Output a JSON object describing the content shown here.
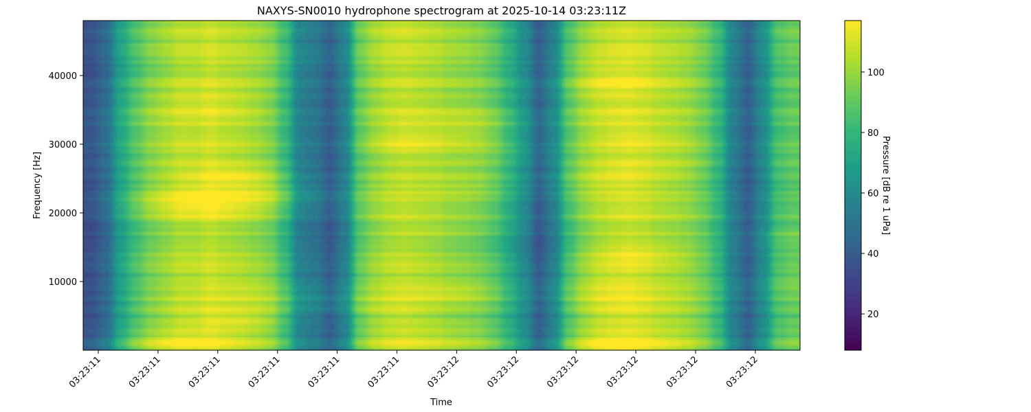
{
  "chart_data": {
    "type": "heatmap",
    "title": "NAXYS-SN0010 hydrophone spectrogram at 2025-10-14 03:23:11Z",
    "xlabel": "Time",
    "ylabel": "Frequency [Hz]",
    "ylim": [
      0,
      48000
    ],
    "x_tick_labels": [
      "03:23:11",
      "03:23:11",
      "03:23:11",
      "03:23:11",
      "03:23:11",
      "03:23:11",
      "03:23:12",
      "03:23:12",
      "03:23:12",
      "03:23:12",
      "03:23:12",
      "03:23:12"
    ],
    "y_ticks": [
      10000,
      20000,
      30000,
      40000
    ],
    "colormap": "viridis",
    "colorbar": {
      "label": "Pressure [dB re 1 uPa]",
      "range": [
        8,
        117
      ],
      "ticks": [
        20,
        40,
        60,
        80,
        100
      ]
    },
    "mean_level_db_by_time_bin": [
      35,
      45,
      70,
      85,
      95,
      100,
      105,
      105,
      108,
      105,
      103,
      100,
      95,
      80,
      55,
      50,
      40,
      55,
      90,
      100,
      105,
      107,
      105,
      103,
      100,
      98,
      95,
      88,
      75,
      60,
      40,
      55,
      85,
      98,
      105,
      108,
      110,
      108,
      105,
      103,
      100,
      93,
      80,
      55,
      42,
      60,
      85,
      90
    ],
    "grid": false
  }
}
